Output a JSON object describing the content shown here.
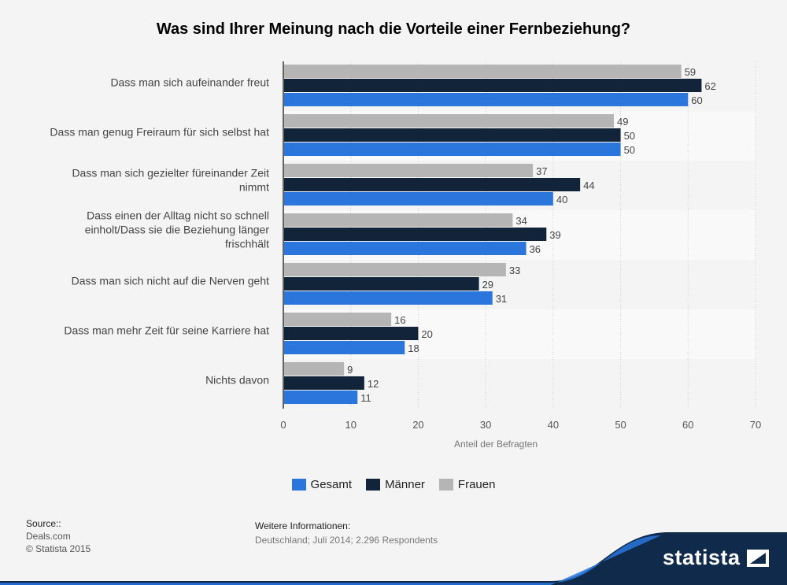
{
  "chart_data": {
    "type": "bar",
    "orientation": "horizontal",
    "title": "Was sind Ihrer Meinung nach die Vorteile einer Fernbeziehung?",
    "xlabel": "Anteil der Befragten",
    "ylabel": "",
    "xlim": [
      0,
      70
    ],
    "xticks": [
      0,
      10,
      20,
      30,
      40,
      50,
      60,
      70
    ],
    "grid": true,
    "legend_position": "bottom",
    "categories": [
      [
        "Dass man sich aufeinander freut"
      ],
      [
        "Dass man genug Freiraum für sich selbst hat"
      ],
      [
        "Dass man sich gezielter füreinander Zeit",
        "nimmt"
      ],
      [
        "Dass einen der Alltag nicht so schnell",
        "einholt/Dass sie die Beziehung länger",
        "frischhält"
      ],
      [
        "Dass man sich nicht auf die Nerven geht"
      ],
      [
        "Dass man mehr Zeit für seine Karriere hat"
      ],
      [
        "Nichts davon"
      ]
    ],
    "series": [
      {
        "name": "Frauen",
        "color": "#b5b5b5",
        "values": [
          59,
          49,
          37,
          34,
          33,
          16,
          9
        ]
      },
      {
        "name": "Männer",
        "color": "#12243a",
        "values": [
          62,
          50,
          44,
          39,
          29,
          20,
          12
        ]
      },
      {
        "name": "Gesamt",
        "color": "#2a76dd",
        "values": [
          60,
          50,
          40,
          36,
          31,
          18,
          11
        ]
      }
    ]
  },
  "legend": {
    "items": [
      {
        "label": "Gesamt",
        "color": "#2a76dd"
      },
      {
        "label": "Männer",
        "color": "#12243a"
      },
      {
        "label": "Frauen",
        "color": "#b5b5b5"
      }
    ]
  },
  "source": {
    "heading": "Source::",
    "line1": "Deals.com",
    "line2": "© Statista 2015"
  },
  "info": {
    "heading": "Weitere Informationen:",
    "text": "Deutschland; Juli 2014; 2.296 Respondents"
  },
  "brand": {
    "name": "statista",
    "band_color": "#0f2a4a",
    "accent_color": "#2a76dd"
  }
}
